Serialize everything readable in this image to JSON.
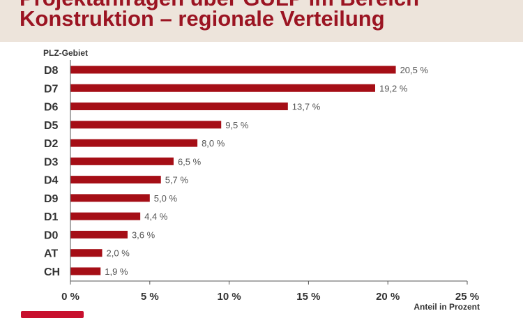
{
  "header": {
    "title_line1": "Projektanfragen über GULP im Bereich",
    "title_line2": "Konstruktion – regionale Verteilung"
  },
  "chart_data": {
    "type": "bar",
    "orientation": "horizontal",
    "title": "Projektanfragen über GULP im Bereich Konstruktion – regionale Verteilung",
    "ylabel": "PLZ-Gebiet",
    "xlabel": "Anteil in Prozent",
    "categories": [
      "D8",
      "D7",
      "D6",
      "D5",
      "D2",
      "D3",
      "D4",
      "D9",
      "D1",
      "D0",
      "AT",
      "CH"
    ],
    "values": [
      20.5,
      19.2,
      13.7,
      9.5,
      8.0,
      6.5,
      5.7,
      5.0,
      4.4,
      3.6,
      2.0,
      1.9
    ],
    "value_labels": [
      "20,5 %",
      "19,2 %",
      "13,7 %",
      "9,5 %",
      "8,0 %",
      "6,5 %",
      "5,7 %",
      "5,0 %",
      "4,4 %",
      "3,6 %",
      "2,0 %",
      "1,9 %"
    ],
    "xlim": [
      0,
      25
    ],
    "xticks": [
      0,
      5,
      10,
      15,
      20,
      25
    ],
    "xtick_labels": [
      "0 %",
      "5 %",
      "10 %",
      "15 %",
      "20 %",
      "25 %"
    ],
    "bar_color": "#a50e16",
    "grid": false,
    "legend": "none"
  },
  "colors": {
    "title": "#9b1422",
    "header_background": "#ede4db",
    "bar": "#a50e16",
    "axis": "#555555"
  }
}
